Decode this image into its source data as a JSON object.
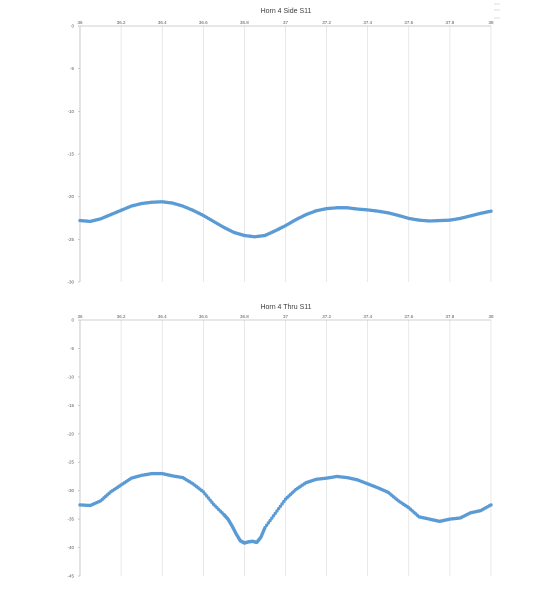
{
  "chart_data": [
    {
      "type": "scatter",
      "title": "Horn 4 Side S11",
      "xlim": [
        36,
        38
      ],
      "ylim": [
        -30,
        0
      ],
      "xticks": [
        "36",
        "36.2",
        "36.4",
        "36.6",
        "36.8",
        "37",
        "37.2",
        "37.4",
        "37.6",
        "37.8",
        "38"
      ],
      "yticks": [
        "0",
        "-5",
        "-10",
        "-15",
        "-20",
        "-25",
        "-30"
      ],
      "grid": "vertical",
      "legend": "none",
      "color": "#5b9bd5",
      "series": [
        {
          "x": [
            36.0,
            36.05,
            36.1,
            36.15,
            36.2,
            36.25,
            36.3,
            36.35,
            36.4,
            36.45,
            36.5,
            36.55,
            36.6,
            36.65,
            36.7,
            36.75,
            36.8,
            36.85,
            36.9,
            36.95,
            37.0,
            37.05,
            37.1,
            37.15,
            37.2,
            37.25,
            37.3,
            37.35,
            37.4,
            37.45,
            37.5,
            37.55,
            37.6,
            37.65,
            37.7,
            37.75,
            37.8,
            37.85,
            37.9,
            37.95,
            38.0
          ],
          "y": [
            -22.8,
            -22.9,
            -22.6,
            -22.1,
            -21.6,
            -21.1,
            -20.8,
            -20.65,
            -20.6,
            -20.75,
            -21.1,
            -21.6,
            -22.2,
            -22.9,
            -23.6,
            -24.2,
            -24.55,
            -24.7,
            -24.55,
            -24.0,
            -23.4,
            -22.7,
            -22.1,
            -21.65,
            -21.4,
            -21.3,
            -21.3,
            -21.45,
            -21.55,
            -21.7,
            -21.9,
            -22.2,
            -22.55,
            -22.75,
            -22.85,
            -22.8,
            -22.75,
            -22.55,
            -22.25,
            -21.95,
            -21.7
          ]
        }
      ]
    },
    {
      "type": "scatter",
      "title": "Horn 4 Thru S11",
      "xlim": [
        36,
        38
      ],
      "ylim": [
        -45,
        0
      ],
      "xticks": [
        "36",
        "36.2",
        "36.4",
        "36.6",
        "36.8",
        "37",
        "37.2",
        "37.4",
        "37.6",
        "37.8",
        "38"
      ],
      "yticks": [
        "0",
        "-5",
        "-10",
        "-15",
        "-20",
        "-25",
        "-30",
        "-35",
        "-40",
        "-45"
      ],
      "grid": "vertical",
      "legend": "none",
      "color": "#5b9bd5",
      "series": [
        {
          "x": [
            36.0,
            36.05,
            36.1,
            36.15,
            36.2,
            36.25,
            36.3,
            36.35,
            36.4,
            36.45,
            36.5,
            36.55,
            36.6,
            36.65,
            36.7,
            36.72,
            36.74,
            36.76,
            36.78,
            36.8,
            36.82,
            36.84,
            36.86,
            36.88,
            36.9,
            36.95,
            37.0,
            37.05,
            37.1,
            37.15,
            37.2,
            37.25,
            37.3,
            37.35,
            37.4,
            37.45,
            37.5,
            37.55,
            37.6,
            37.65,
            37.7,
            37.75,
            37.8,
            37.85,
            37.9,
            37.95,
            38.0
          ],
          "y": [
            -32.5,
            -32.6,
            -31.8,
            -30.2,
            -29.0,
            -27.8,
            -27.3,
            -27.0,
            -27.0,
            -27.4,
            -27.7,
            -28.8,
            -30.2,
            -32.4,
            -34.2,
            -35.0,
            -36.2,
            -37.6,
            -38.8,
            -39.2,
            -39.0,
            -38.9,
            -39.1,
            -38.2,
            -36.5,
            -34.0,
            -31.5,
            -29.8,
            -28.6,
            -28.0,
            -27.8,
            -27.5,
            -27.7,
            -28.1,
            -28.8,
            -29.5,
            -30.3,
            -31.8,
            -33.0,
            -34.6,
            -35.0,
            -35.4,
            -35.0,
            -34.8,
            -33.9,
            -33.5,
            -32.5
          ]
        }
      ]
    }
  ]
}
